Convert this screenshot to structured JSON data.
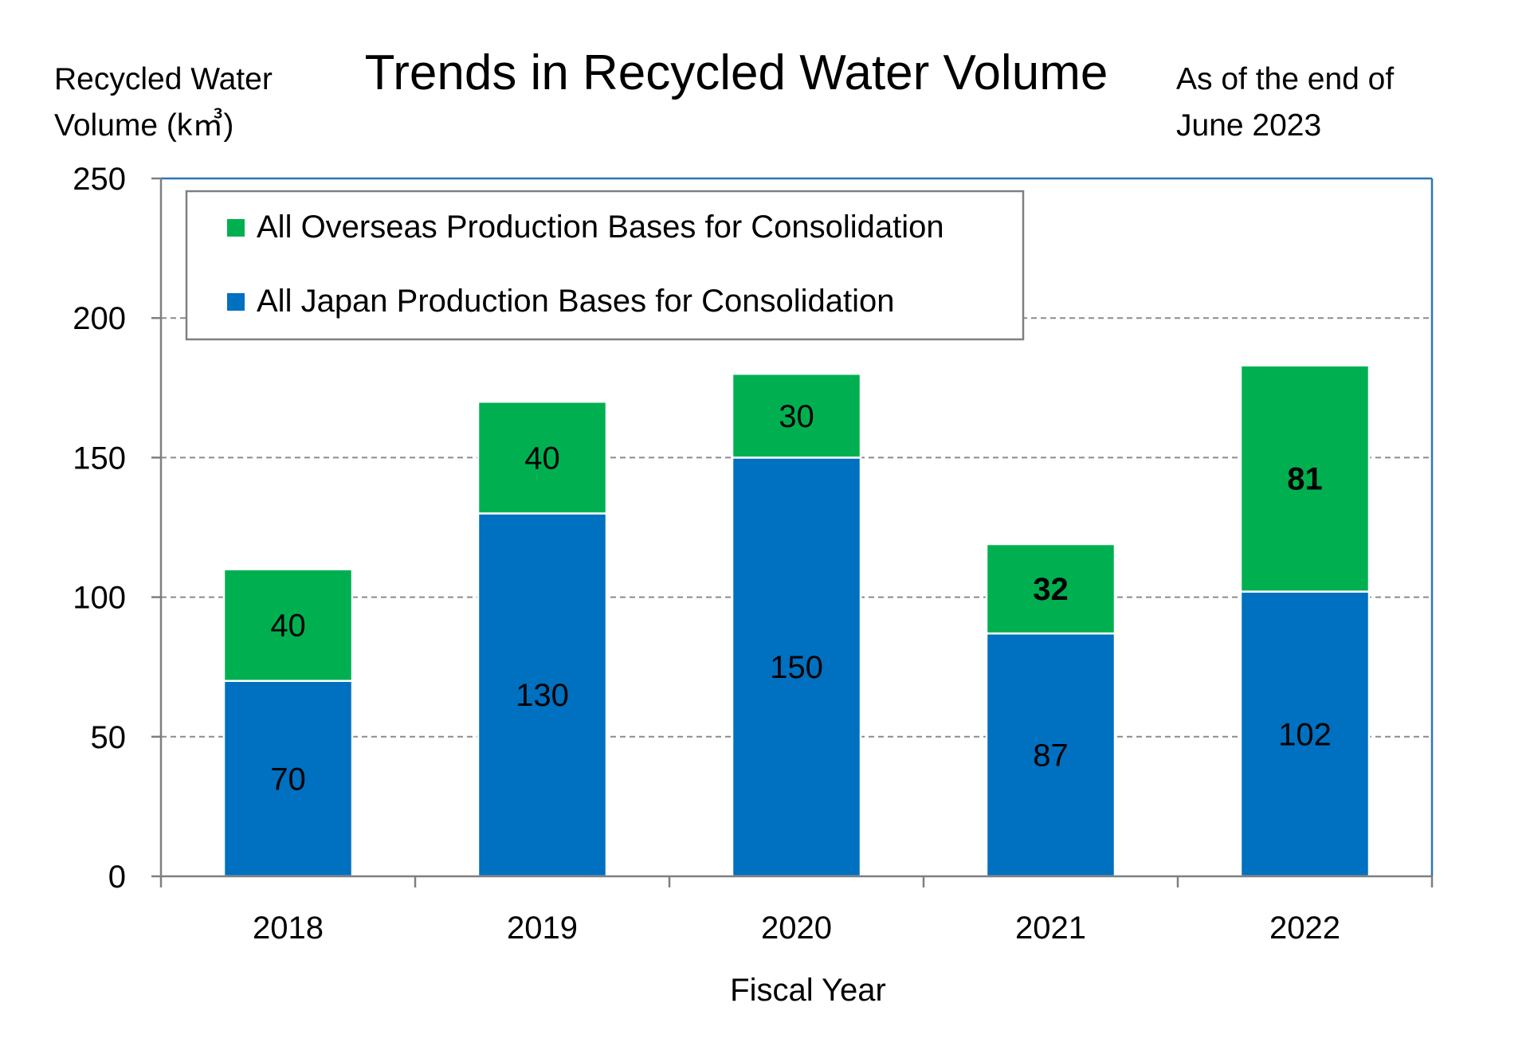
{
  "chart_data": {
    "type": "bar",
    "stacked": true,
    "title": "Trends in Recycled Water Volume",
    "ylabel_line1": "Recycled Water",
    "ylabel_line2": "Volume (k㎥)",
    "note_line1": "As of the end of",
    "note_line2": "June 2023",
    "xlabel": "Fiscal Year",
    "categories": [
      "2018",
      "2019",
      "2020",
      "2021",
      "2022"
    ],
    "ylim": [
      0,
      250
    ],
    "yticks": [
      0,
      50,
      100,
      150,
      200,
      250
    ],
    "grid": true,
    "legend_position": "top-left",
    "series": [
      {
        "name": "All Japan Production Bases for Consolidation",
        "color": "#0070c0",
        "values": [
          70,
          130,
          150,
          87,
          102
        ],
        "bold_labels": [
          false,
          false,
          false,
          false,
          false
        ]
      },
      {
        "name": "All Overseas Production Bases for Consolidation",
        "color": "#00b050",
        "values": [
          40,
          40,
          30,
          32,
          81
        ],
        "bold_labels": [
          false,
          false,
          false,
          true,
          true
        ]
      }
    ]
  }
}
